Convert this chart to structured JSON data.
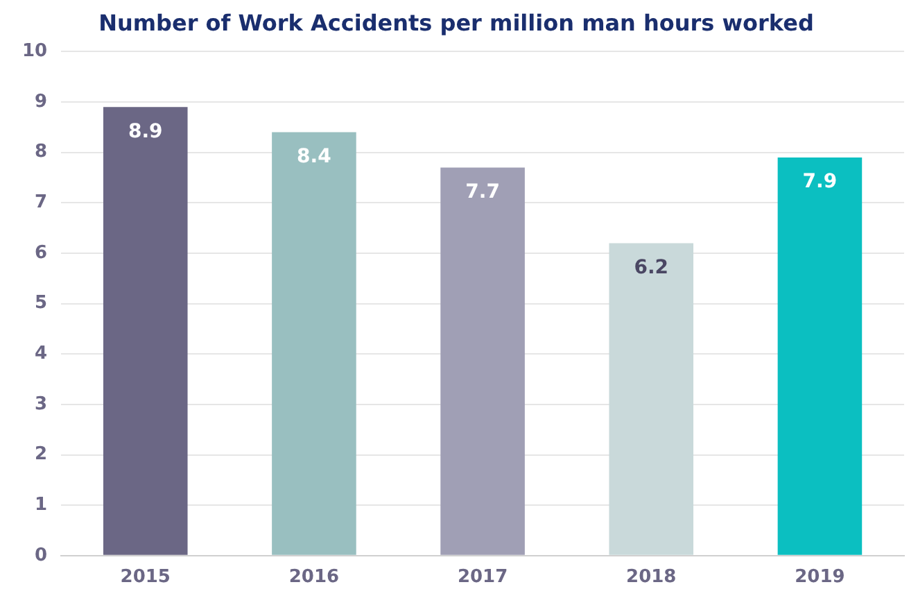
{
  "chart_data": {
    "type": "bar",
    "title": "Number of Work Accidents per million man hours worked",
    "categories": [
      "2015",
      "2016",
      "2017",
      "2018",
      "2019"
    ],
    "values": [
      8.9,
      8.4,
      7.7,
      6.2,
      7.9
    ],
    "colors": [
      "#6b6785",
      "#99bfc0",
      "#a09fb5",
      "#c9d9da",
      "#0bbfc1"
    ],
    "ylim": [
      0,
      10
    ],
    "yticks": [
      0,
      1,
      2,
      3,
      4,
      5,
      6,
      7,
      8,
      9,
      10
    ],
    "grid": "y",
    "legend": false,
    "data_labels": true
  }
}
